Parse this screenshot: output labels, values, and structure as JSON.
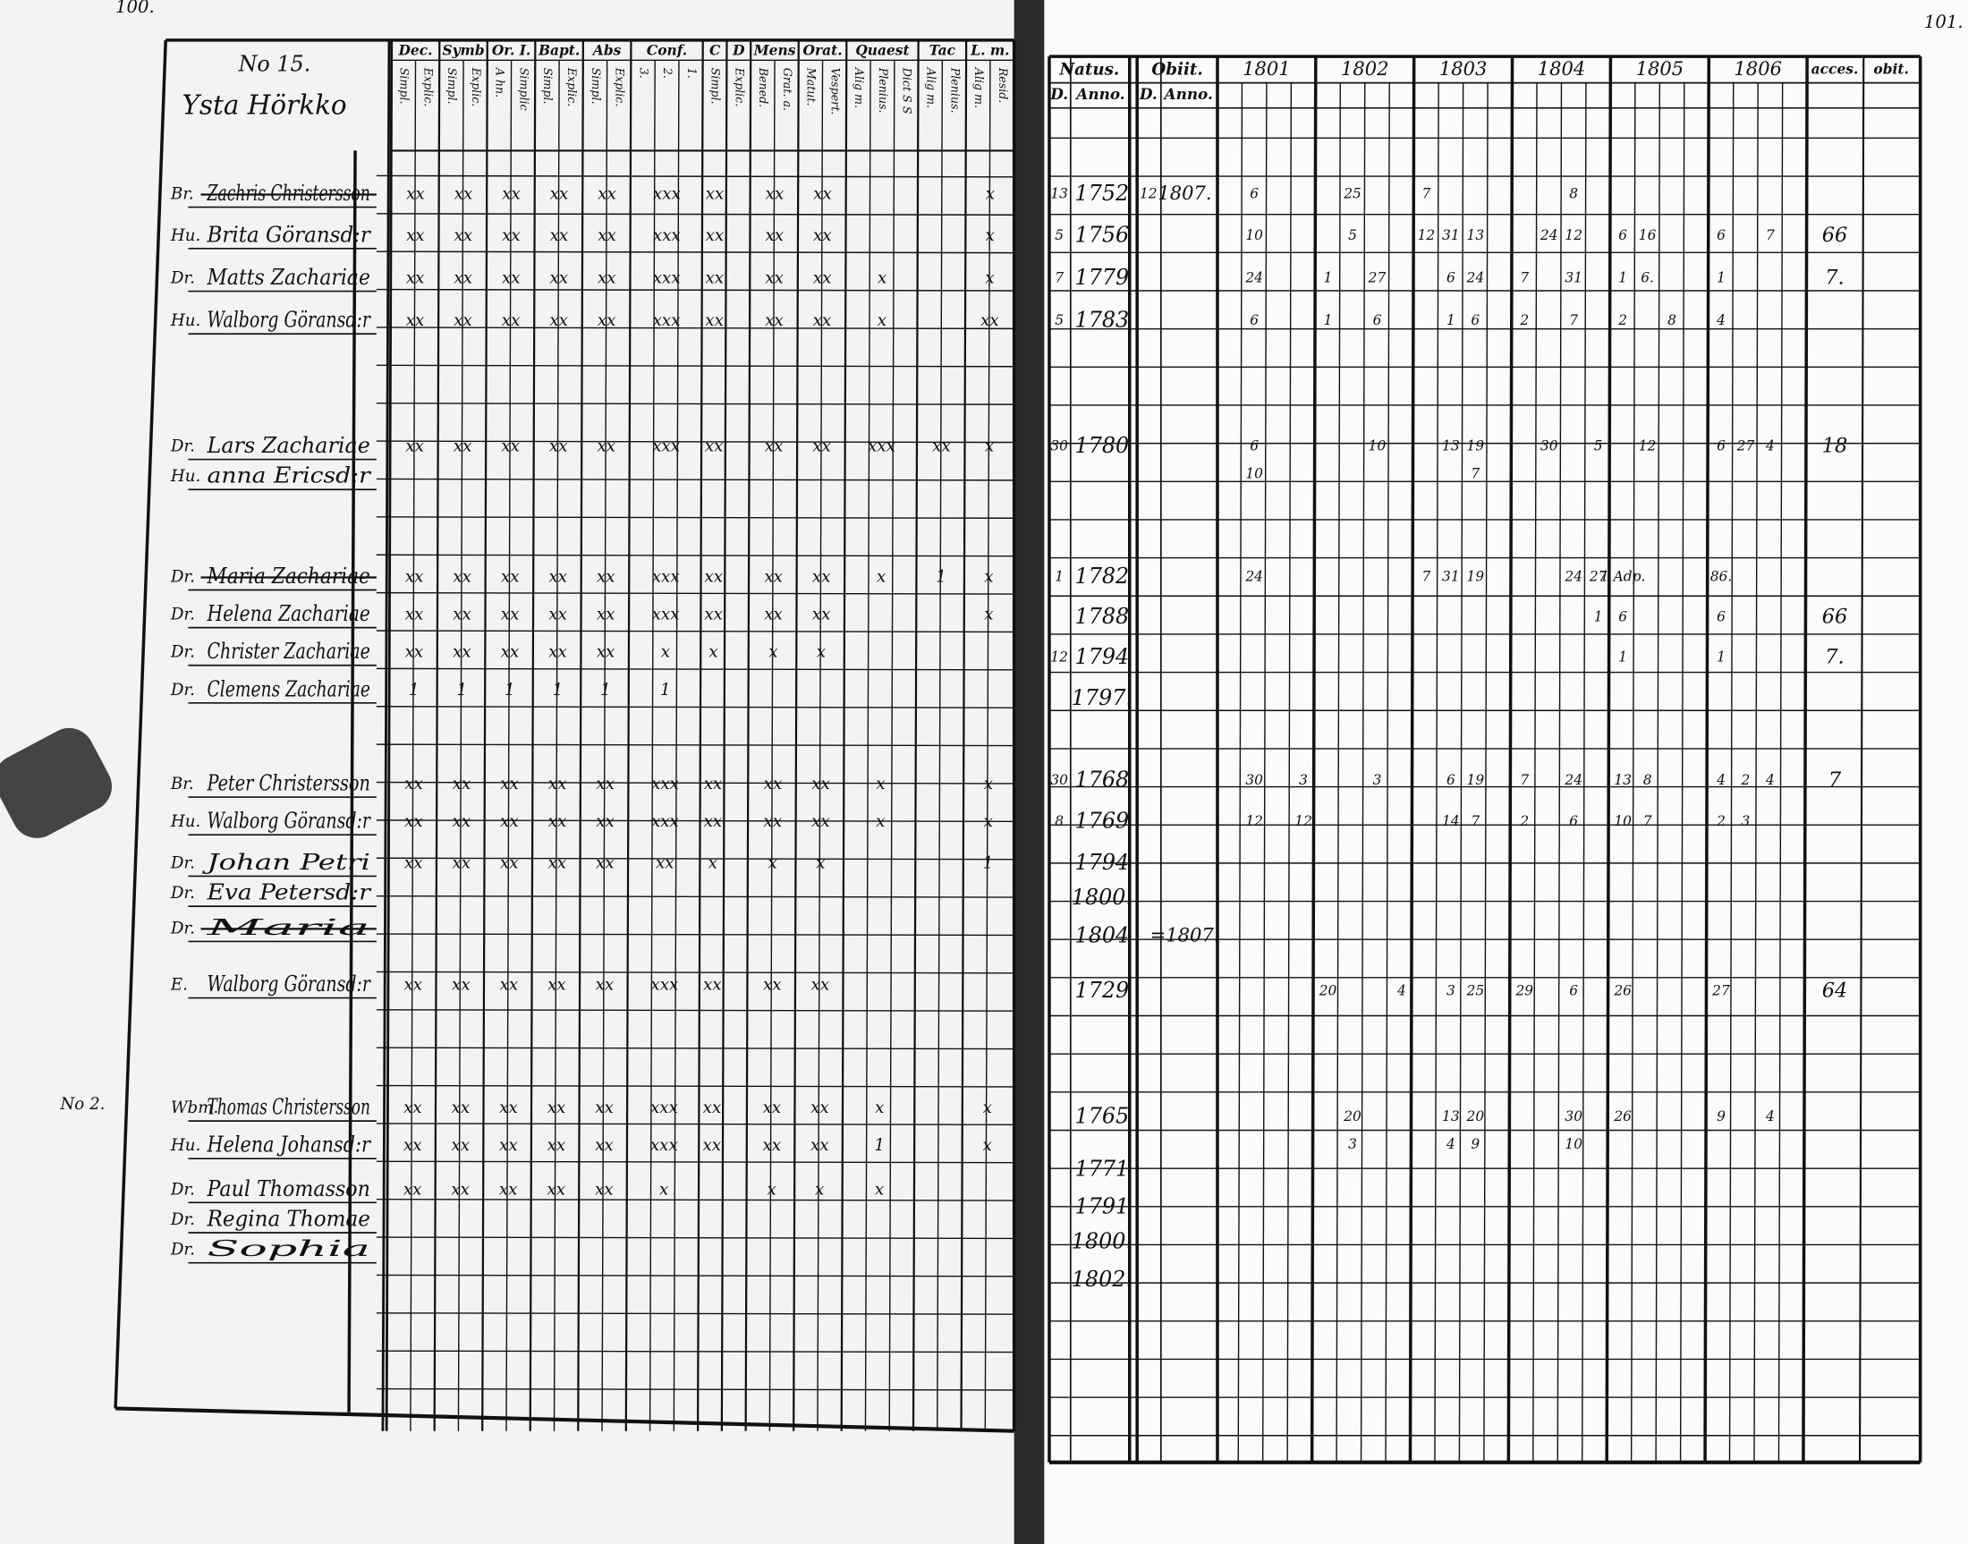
{
  "left_page": {
    "page_number": "100.",
    "household": "No 15.",
    "farm": "Ysta Hörkko",
    "note": "No 2.",
    "column_groups": [
      {
        "name": "Dec.",
        "columns": [
          "Simpl.",
          "Explic."
        ]
      },
      {
        "name": "Symb",
        "columns": [
          "Simpl.",
          "Explic."
        ]
      },
      {
        "name": "Or. I.",
        "columns": [
          "A hn.",
          "Simplic"
        ]
      },
      {
        "name": "Bapt.",
        "columns": [
          "Simpl.",
          "Explic."
        ]
      },
      {
        "name": "Abs",
        "columns": [
          "Simpl.",
          "Explic."
        ]
      },
      {
        "name": "Conf.",
        "columns": [
          "3.",
          "2.",
          "1."
        ]
      },
      {
        "name": "C",
        "columns": [
          "Simpl."
        ]
      },
      {
        "name": "D",
        "columns": [
          "Explic."
        ]
      },
      {
        "name": "Mens",
        "columns": [
          "Bened.",
          "Grat. a."
        ]
      },
      {
        "name": "Orat.",
        "columns": [
          "Matut.",
          "Vespert."
        ]
      },
      {
        "name": "Quaest",
        "columns": [
          "Alig m.",
          "Plenius.",
          "Dict S S"
        ]
      },
      {
        "name": "Tac",
        "columns": [
          "Alig m.",
          "Plenius."
        ]
      },
      {
        "name": "L. m.",
        "columns": [
          "Alig m.",
          "Resid."
        ]
      }
    ],
    "persons": [
      {
        "title": "Br.",
        "name": "Zachris Christersson",
        "struck": true,
        "marks": [
          "xx",
          "xx",
          "xx",
          "xx",
          "xx",
          "xxx",
          "xx",
          null,
          "xx",
          "xx",
          null,
          null,
          "x"
        ]
      },
      {
        "title": "Hu.",
        "name": "Brita Göransd:r",
        "marks": [
          "xx",
          "xx",
          "xx",
          "xx",
          "xx",
          "xxx",
          "xx",
          null,
          "xx",
          "xx",
          null,
          null,
          "x"
        ]
      },
      {
        "title": "Dr.",
        "name": "Matts Zachariae",
        "marks": [
          "xx",
          "xx",
          "xx",
          "xx",
          "xx",
          "xxx",
          "xx",
          null,
          "xx",
          "xx",
          "x",
          null,
          "x"
        ]
      },
      {
        "title": "Hu.",
        "name": "Walborg Göransd:r",
        "marks": [
          "xx",
          "xx",
          "xx",
          "xx",
          "xx",
          "xxx",
          "xx",
          null,
          "xx",
          "xx",
          "x",
          null,
          "xx"
        ]
      },
      {
        "title": "Dr.",
        "name": "Lars Zachariae",
        "marks": [
          "xx",
          "xx",
          "xx",
          "xx",
          "xx",
          "xxx",
          "xx",
          null,
          "xx",
          "xx",
          "xxx",
          "xx",
          "x"
        ]
      },
      {
        "title": "Hu.",
        "name": "anna Ericsd:r"
      },
      {
        "title": "Dr.",
        "name": "Maria Zachariae",
        "struck": true,
        "marks": [
          "xx",
          "xx",
          "xx",
          "xx",
          "xx",
          "xxx",
          "xx",
          null,
          "xx",
          "xx",
          "x",
          "1",
          "x"
        ]
      },
      {
        "title": "Dr.",
        "name": "Helena Zachariae",
        "marks": [
          "xx",
          "xx",
          "xx",
          "xx",
          "xx",
          "xxx",
          "xx",
          null,
          "xx",
          "xx",
          null,
          null,
          "x"
        ]
      },
      {
        "title": "Dr.",
        "name": "Christer Zachariae",
        "marks": [
          "xx",
          "xx",
          "xx",
          "xx",
          "xx",
          "x",
          "x",
          null,
          "x",
          "x"
        ]
      },
      {
        "title": "Dr.",
        "name": "Clemens Zachariae",
        "marks": [
          "1",
          "1",
          "1",
          "1",
          "1",
          "1"
        ]
      },
      {
        "title": "Br.",
        "name": "Peter Christersson",
        "marks": [
          "xx",
          "xx",
          "xx",
          "xx",
          "xx",
          "xxx",
          "xx",
          null,
          "xx",
          "xx",
          "x",
          null,
          "x"
        ]
      },
      {
        "title": "Hu.",
        "name": "Walborg Göransd:r",
        "marks": [
          "xx",
          "xx",
          "xx",
          "xx",
          "xx",
          "xxx",
          "xx",
          null,
          "xx",
          "xx",
          "x",
          null,
          "x"
        ]
      },
      {
        "title": "Dr.",
        "name": "Johan Petri",
        "marks": [
          "xx",
          "xx",
          "xx",
          "xx",
          "xx",
          "xx",
          "x",
          null,
          "x",
          "x",
          null,
          null,
          "1"
        ]
      },
      {
        "title": "Dr.",
        "name": "Eva Petersd:r"
      },
      {
        "title": "Dr.",
        "name": "Maria",
        "struck": true
      },
      {
        "title": "E.",
        "name": "Walborg Göransd:r",
        "marks": [
          "xx",
          "xx",
          "xx",
          "xx",
          "xx",
          "xxx",
          "xx",
          null,
          "xx",
          "xx"
        ]
      },
      {
        "title": "Wbm.",
        "name": "Thomas Christersson",
        "marks": [
          "xx",
          "xx",
          "xx",
          "xx",
          "xx",
          "xxx",
          "xx",
          null,
          "xx",
          "xx",
          "x",
          null,
          "x"
        ]
      },
      {
        "title": "Hu.",
        "name": "Helena Johansd:r",
        "marks": [
          "xx",
          "xx",
          "xx",
          "xx",
          "xx",
          "xxx",
          "xx",
          null,
          "xx",
          "xx",
          "1",
          null,
          "x"
        ]
      },
      {
        "title": "Dr.",
        "name": "Paul Thomasson",
        "marks": [
          "xx",
          "xx",
          "xx",
          "xx",
          "xx",
          "x",
          null,
          null,
          "x",
          "x",
          "x"
        ]
      },
      {
        "title": "Dr.",
        "name": "Regina Thomae"
      },
      {
        "title": "Dr.",
        "name": "Sophia"
      }
    ]
  },
  "right_page": {
    "page_number": "101.",
    "natus": "Natus.",
    "obiit": "Obiit.",
    "day_label": "D.",
    "year_label": "Anno.",
    "years": [
      "1801",
      "1802",
      "1803",
      "1804",
      "1805",
      "1806"
    ],
    "accessit": "acces.",
    "obitus": "obit.",
    "rows": [
      {
        "day": "13",
        "year": "1752",
        "death_day": "12",
        "death_year": "1807.",
        "entries": [
          null,
          "6",
          null,
          null,
          null,
          "25",
          null,
          null,
          "7",
          null,
          null,
          null,
          null,
          null,
          "8",
          null,
          null,
          null,
          null,
          null,
          null,
          null,
          null,
          null,
          null,
          null
        ]
      },
      {
        "day": "5",
        "year": "1756",
        "entries": [
          null,
          "10",
          null,
          null,
          null,
          "5",
          null,
          null,
          "12",
          "31",
          "13",
          null,
          null,
          "24",
          "12",
          null,
          "6",
          "16",
          null,
          null,
          "6",
          null,
          "7",
          null,
          "66",
          null
        ]
      },
      {
        "day": "7",
        "year": "1779",
        "entries": [
          null,
          "24",
          null,
          null,
          "1",
          null,
          "27",
          null,
          null,
          "6",
          "24",
          null,
          "7",
          null,
          "31",
          null,
          "1",
          "6.",
          null,
          null,
          "1",
          null,
          null,
          null,
          "7.",
          null
        ]
      },
      {
        "day": "5",
        "year": "1783",
        "entries": [
          null,
          "6",
          null,
          null,
          "1",
          null,
          "6",
          null,
          null,
          "1",
          "6",
          null,
          "2",
          null,
          "7",
          null,
          "2",
          null,
          "8",
          null,
          "4",
          null,
          null,
          null,
          null,
          null
        ]
      },
      {
        "day": "30",
        "year": "1780",
        "entries": [
          null,
          "6",
          null,
          null,
          null,
          null,
          "10",
          null,
          null,
          "13",
          "19",
          null,
          null,
          "30",
          null,
          "5",
          null,
          "12",
          null,
          null,
          "6",
          "27",
          "4",
          null,
          "18",
          null
        ]
      },
      {
        "entries": [
          null,
          "10",
          null,
          null,
          null,
          null,
          null,
          null,
          null,
          null,
          "7",
          null,
          null,
          null,
          null,
          null,
          null,
          null,
          null,
          null,
          null,
          null,
          null,
          null,
          null,
          null
        ]
      },
      {
        "day": "1",
        "year": "1782",
        "entries": [
          null,
          "24",
          null,
          null,
          null,
          null,
          null,
          null,
          "7",
          "31",
          "19",
          null,
          null,
          null,
          "24",
          "27",
          "1 Adp.",
          null,
          null,
          null,
          "86.",
          null,
          null,
          null,
          null,
          null
        ]
      },
      {
        "year": "1788",
        "entries": [
          null,
          null,
          null,
          null,
          null,
          null,
          null,
          null,
          null,
          null,
          null,
          null,
          null,
          null,
          null,
          "1",
          "6",
          null,
          null,
          null,
          "6",
          null,
          null,
          null,
          "66",
          null
        ]
      },
      {
        "day": "12",
        "year": "1794",
        "entries": [
          null,
          null,
          null,
          null,
          null,
          null,
          null,
          null,
          null,
          null,
          null,
          null,
          null,
          null,
          null,
          null,
          "1",
          null,
          null,
          null,
          "1",
          null,
          null,
          null,
          "7.",
          null
        ]
      },
      {
        "year": "1797."
      },
      {
        "day": "30",
        "year": "1768",
        "entries": [
          null,
          "30",
          null,
          "3",
          null,
          null,
          "3",
          null,
          null,
          "6",
          "19",
          null,
          "7",
          null,
          "24",
          null,
          "13",
          "8",
          null,
          null,
          "4",
          "2",
          "4",
          null,
          "7",
          null
        ]
      },
      {
        "day": "8",
        "year": "1769",
        "entries": [
          null,
          "12",
          null,
          "12",
          null,
          null,
          null,
          null,
          null,
          "14",
          "7",
          null,
          "2",
          null,
          "6",
          null,
          "10",
          "7",
          null,
          null,
          "2",
          "3",
          null,
          null,
          null,
          null
        ]
      },
      {
        "year": "1794"
      },
      {
        "year": "1800."
      },
      {
        "year": "1804",
        "death_year": "=1807."
      },
      {
        "year": "1729",
        "entries": [
          null,
          null,
          null,
          null,
          "20",
          null,
          null,
          "4",
          null,
          "3",
          "25",
          null,
          "29",
          null,
          "6",
          null,
          "26",
          null,
          null,
          null,
          "27",
          null,
          null,
          null,
          "64",
          null
        ]
      },
      {
        "year": "1765",
        "entries": [
          null,
          null,
          null,
          null,
          null,
          "20",
          null,
          null,
          null,
          "13",
          "20",
          null,
          null,
          null,
          "30",
          null,
          "26",
          null,
          null,
          null,
          "9",
          null,
          "4",
          null,
          null,
          null
        ]
      },
      {
        "entries": [
          null,
          null,
          null,
          null,
          null,
          "3",
          null,
          null,
          null,
          "4",
          "9",
          null,
          null,
          null,
          "10",
          null,
          null,
          null,
          null,
          null,
          null,
          null,
          null,
          null,
          null,
          null
        ]
      },
      {
        "year": "1771"
      },
      {
        "year": "1791"
      },
      {
        "year": "1800."
      },
      {
        "year": "1802."
      }
    ]
  }
}
